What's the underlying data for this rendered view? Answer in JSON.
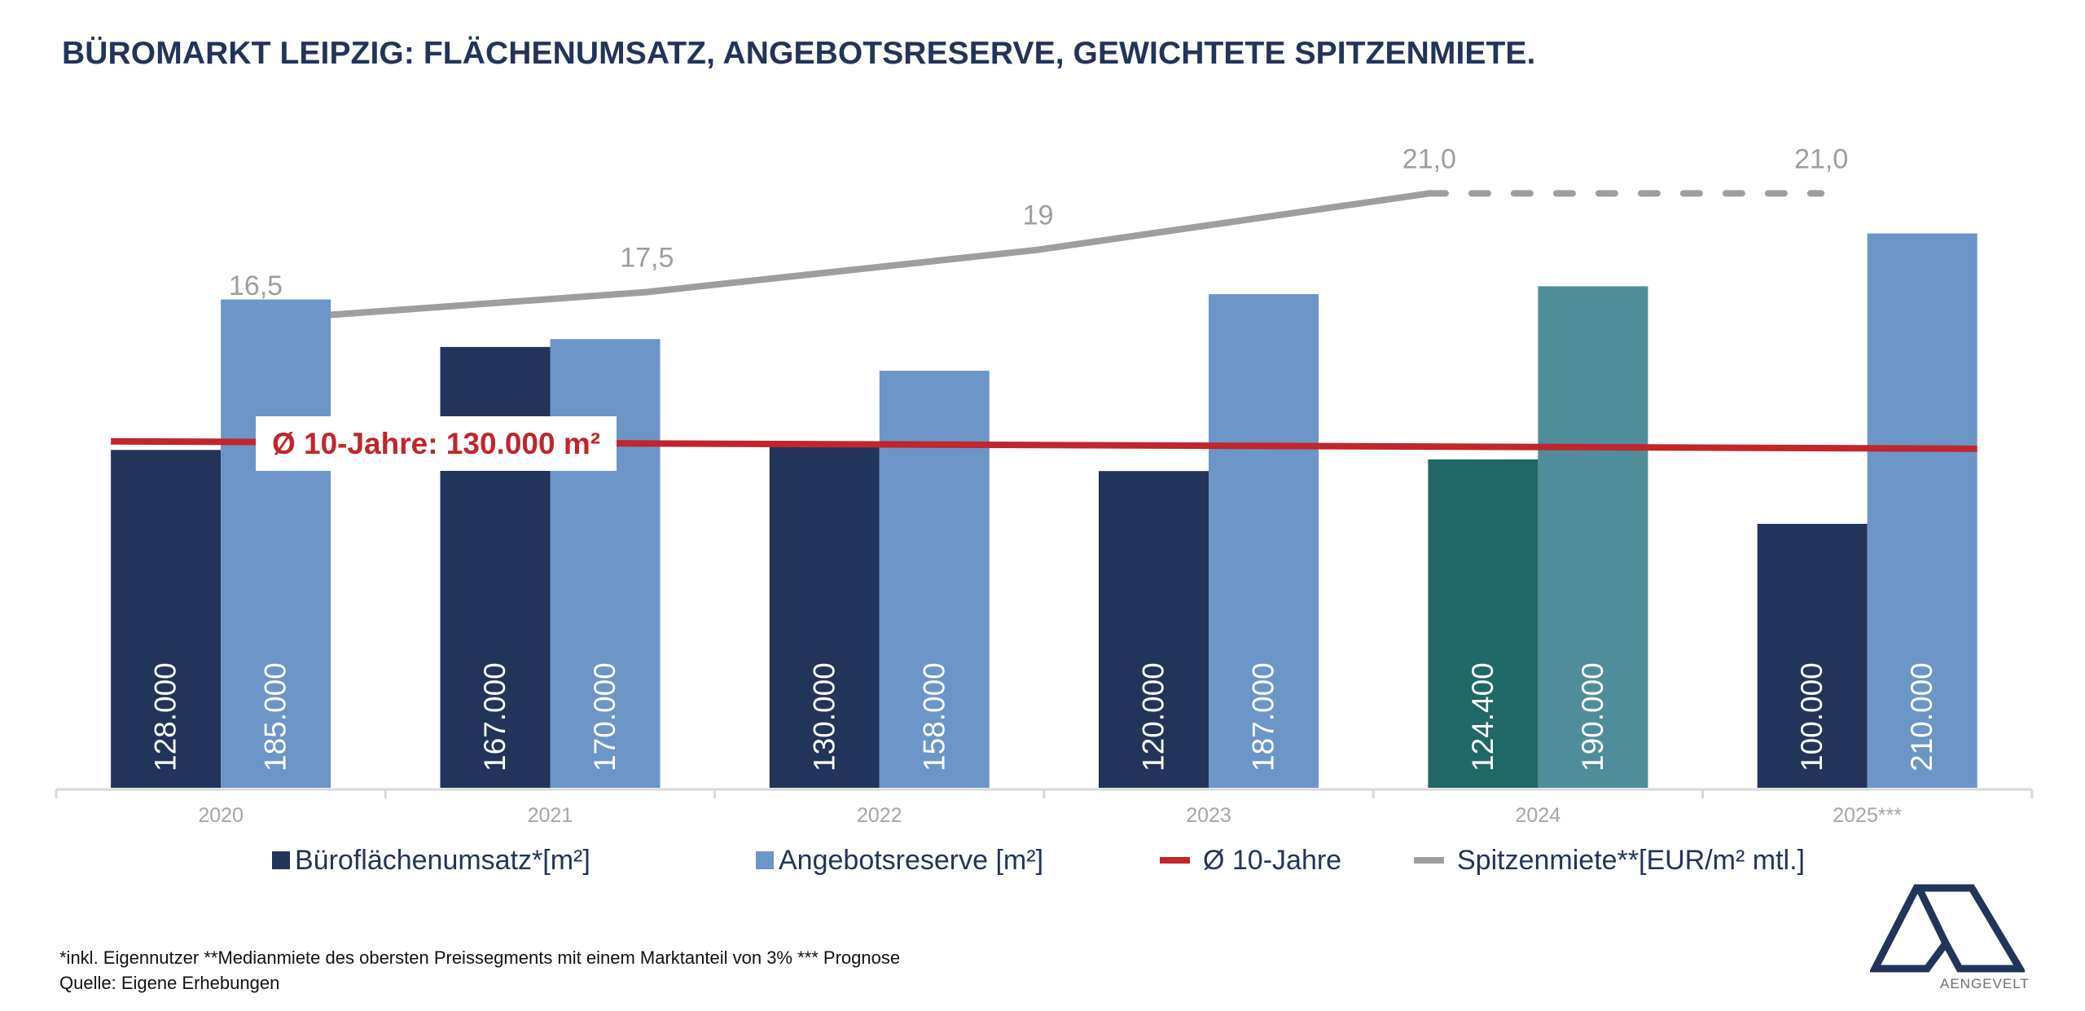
{
  "title": "BÜROMARKT LEIPZIG: FLÄCHENUMSATZ, ANGEBOTSRESERVE, GEWICHTETE SPITZENMIETE.",
  "chart_data": {
    "type": "bar",
    "title": "BÜROMARKT LEIPZIG: FLÄCHENUMSATZ, ANGEBOTSRESERVE, GEWICHTETE SPITZENMIETE.",
    "categories": [
      "2020",
      "2021",
      "2022",
      "2023",
      "2024",
      "2025***"
    ],
    "series": [
      {
        "name": "Büroflächenumsatz*[m²]",
        "type": "bar",
        "axis": "primary",
        "values": [
          128000,
          167000,
          130000,
          120000,
          124400,
          100000
        ],
        "labels": [
          "128.000",
          "167.000",
          "130.000",
          "120.000",
          "124.400",
          "100.000"
        ],
        "color": "#22345a",
        "highlight_color": "#1f6866"
      },
      {
        "name": "Angebotsreserve [m²]",
        "type": "bar",
        "axis": "primary",
        "values": [
          185000,
          170000,
          158000,
          187000,
          190000,
          210000
        ],
        "labels": [
          "185.000",
          "170.000",
          "158.000",
          "187.000",
          "190.000",
          "210.000"
        ],
        "color": "#6b96c7",
        "highlight_color": "#4f8d9a"
      },
      {
        "name": "Ø 10-Jahre",
        "type": "line",
        "axis": "primary",
        "values": [
          130000,
          130000,
          130000,
          130000,
          130000,
          130000
        ],
        "color": "#c0262b"
      },
      {
        "name": "Spitzenmiete**[EUR/m² mtl.]",
        "type": "line",
        "axis": "secondary",
        "values": [
          16.5,
          17.5,
          19,
          21.0,
          null,
          21.0
        ],
        "labels": [
          "16,5",
          "17,5",
          "19",
          "21,0",
          "",
          "21,0"
        ],
        "forecast_dashed_from_index": 3,
        "color": "#9d9ea2"
      }
    ],
    "highlight_category_index": 4,
    "average_annotation": "Ø 10-Jahre: 130.000 m²",
    "xlabel": "",
    "ylabel": "",
    "ylim": [
      0,
      300000
    ],
    "y2lim": [
      0,
      28
    ],
    "grid": false,
    "legend_position": "bottom",
    "value_label_color": "#ffffff",
    "category_label_color": "#a6a6a6"
  },
  "legend": [
    {
      "label": "Büroflächenumsatz*[m²]",
      "kind": "box",
      "color": "#22345a"
    },
    {
      "label": "Angebotsreserve [m²]",
      "kind": "box",
      "color": "#6b96c7"
    },
    {
      "label": "Ø 10-Jahre",
      "kind": "line",
      "color": "#c0262b"
    },
    {
      "label": "Spitzenmiete**[EUR/m² mtl.]",
      "kind": "line",
      "color": "#9d9ea2"
    }
  ],
  "footnotes": {
    "line1": "*inkl. Eigennutzer **Medianmiete des obersten Preissegments mit einem Marktanteil von 3% *** Prognose",
    "line2": "Quelle: Eigene Erhebungen"
  },
  "logo": {
    "text": "AENGEVELT",
    "color": "#22345a"
  }
}
